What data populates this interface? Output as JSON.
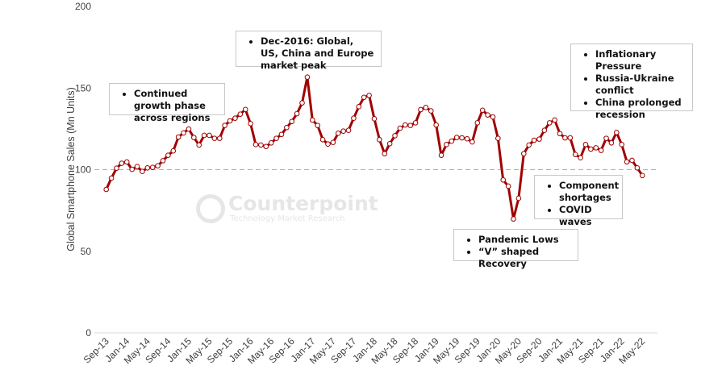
{
  "chart_data": {
    "type": "line",
    "title": "",
    "xlabel": "",
    "ylabel": "Global  Smartphone Sales (Mn Units)",
    "ylim": [
      0,
      200
    ],
    "yticks": [
      "0",
      "50",
      "100",
      "150",
      "200"
    ],
    "reference_line": 100,
    "grid": false,
    "series_color": "#a00000",
    "x_tick_labels": [
      "Sep-13",
      "Jan-14",
      "May-14",
      "Sep-14",
      "Jan-15",
      "May-15",
      "Sep-15",
      "Jan-16",
      "May-16",
      "Sep-16",
      "Jan-17",
      "May-17",
      "Sep-17",
      "Jan-18",
      "May-18",
      "Sep-18",
      "Jan-19",
      "May-19",
      "Sep-19",
      "Jan-20",
      "May-20",
      "Sep-20",
      "Jan-21",
      "May-21",
      "Sep-21",
      "Jan-22",
      "May-22"
    ],
    "x_start": "Sep-13",
    "x_end": "May-22",
    "frequency": "monthly",
    "values": [
      87.9,
      94.8,
      100.9,
      103.9,
      104.7,
      100.2,
      101.9,
      98.9,
      101.1,
      101.4,
      102.4,
      105.5,
      108.8,
      111.5,
      120,
      122.5,
      124.9,
      119.7,
      115.1,
      121,
      121,
      119.2,
      119.2,
      127.1,
      129.9,
      131.5,
      134,
      136.9,
      128.2,
      115.4,
      115.1,
      114.2,
      116.4,
      119.2,
      121.6,
      125.8,
      129.5,
      134.3,
      140.9,
      156.7,
      130.4,
      127.1,
      118.4,
      115.7,
      116.7,
      122.3,
      123.6,
      124.1,
      131.5,
      138.6,
      144.3,
      145.5,
      131.2,
      118.4,
      109.8,
      115.9,
      120.8,
      125.4,
      127.4,
      127.1,
      128.7,
      136.8,
      138.1,
      136,
      127.4,
      108.8,
      115.4,
      117.5,
      119.7,
      119.5,
      118.9,
      117,
      128.7,
      136.4,
      133.5,
      132.3,
      119.2,
      93.7,
      89.9,
      69.8,
      82.5,
      109.8,
      115.1,
      118,
      118.7,
      124.1,
      128.7,
      130.4,
      122.1,
      119.5,
      119.5,
      109.3,
      107.3,
      115.4,
      112.6,
      113.4,
      111.8,
      119.2,
      116.4,
      122.8,
      115.4,
      104.8,
      105.7,
      101.1,
      96.4
    ],
    "annotations": [
      {
        "items": [
          "Continued growth phase across regions"
        ]
      },
      {
        "items": [
          "Dec-2016: Global, US, China and Europe market peak"
        ]
      },
      {
        "items": [
          "Inflationary Pressure",
          "Russia-Ukraine conflict",
          "China prolonged recession"
        ]
      },
      {
        "items": [
          "Component shortages",
          "COVID waves"
        ]
      },
      {
        "items": [
          "Pandemic Lows",
          "“V” shaped Recovery"
        ]
      }
    ]
  },
  "watermark": {
    "brand": "Counterpoint",
    "tagline": "Technology Market Research"
  }
}
